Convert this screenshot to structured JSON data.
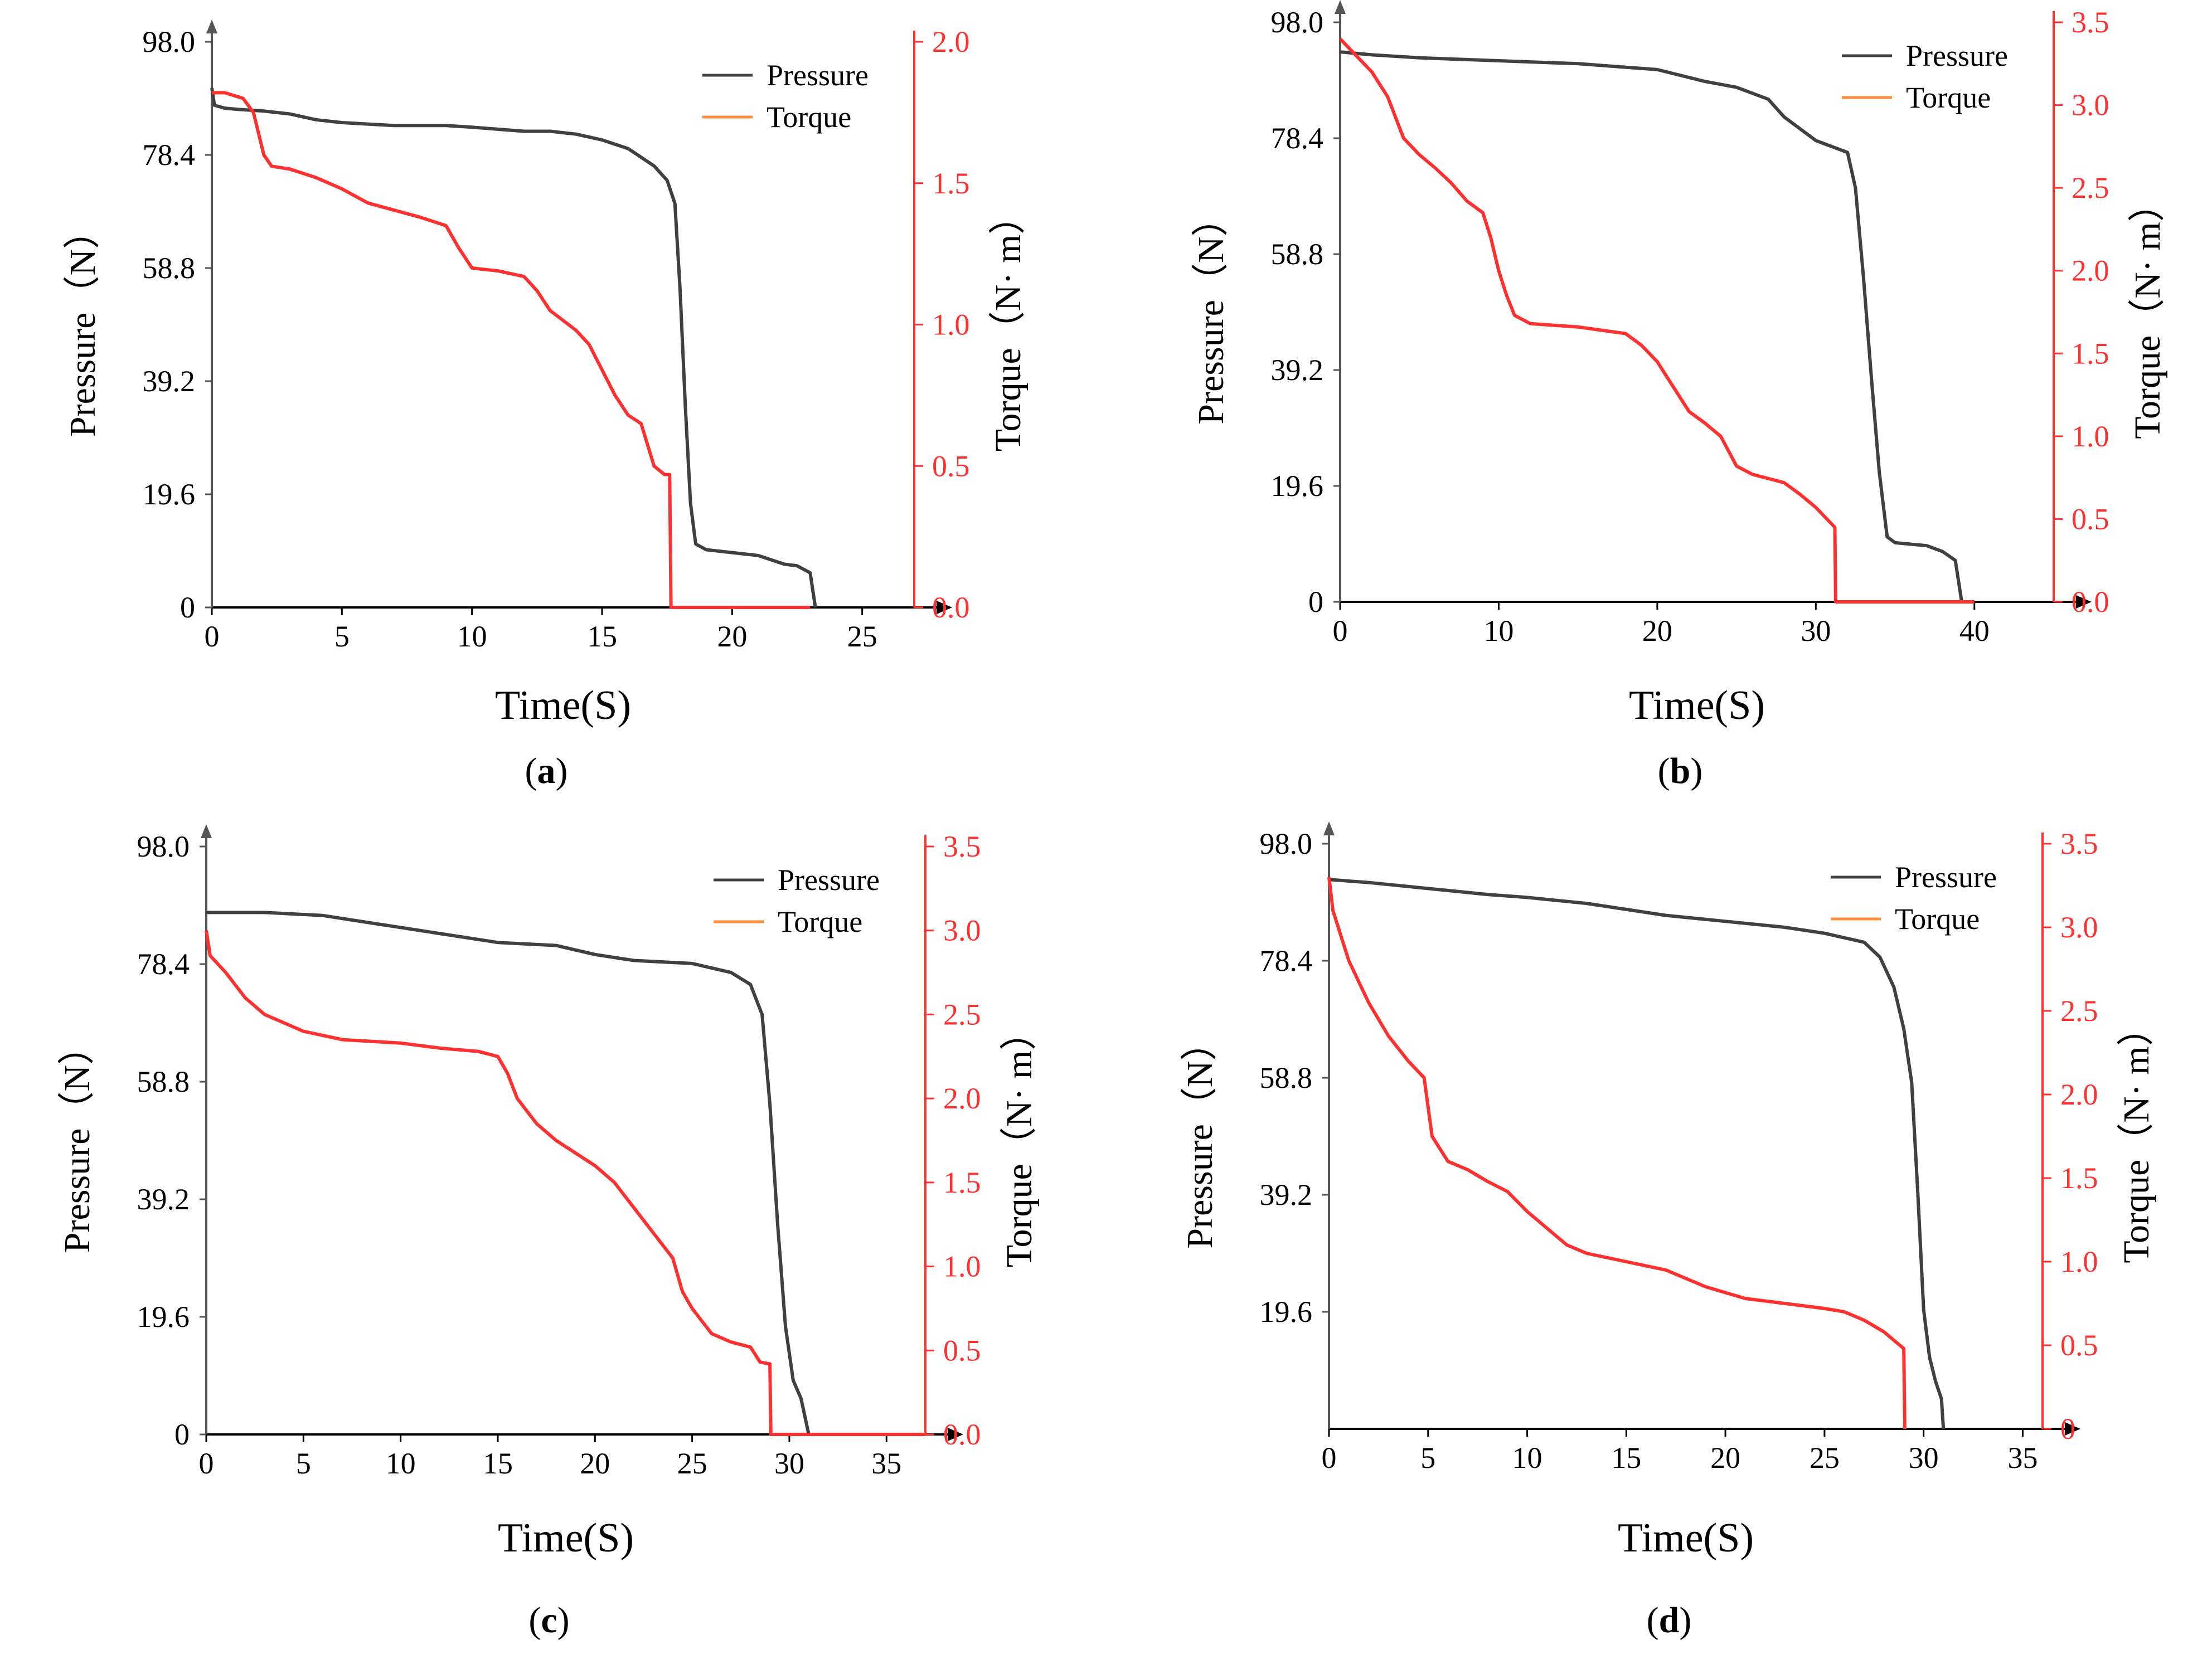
{
  "colors": {
    "pressure": "#404040",
    "torque": "#ff3030",
    "torque_axis": "#ff3030",
    "axis": "#000000"
  },
  "chart_data": [
    {
      "id": "a",
      "panel_label": "(a)",
      "type": "line",
      "xlabel": "Time(S)",
      "ylabel_left": "Pressure（N）",
      "ylabel_right": "Torque（N· m）",
      "xlim": [
        0,
        27
      ],
      "ylim_left": [
        0,
        98.0
      ],
      "ylim_right": [
        0,
        2.0
      ],
      "xticks": [
        0,
        5,
        10,
        15,
        20,
        25
      ],
      "xtick_labels": [
        "0",
        "5",
        "10",
        "15",
        "20",
        "25"
      ],
      "yticks_left": [
        0,
        19.6,
        39.2,
        58.8,
        78.4,
        98.0
      ],
      "ytick_labels_left": [
        "0",
        "19.6",
        "39.2",
        "58.8",
        "78.4",
        "98.0"
      ],
      "yticks_right": [
        0,
        0.5,
        1.0,
        1.5,
        2.0
      ],
      "ytick_labels_right": [
        "0.0",
        "0.5",
        "1.0",
        "1.5",
        "2.0"
      ],
      "legend_position": "top-right",
      "series": [
        {
          "name": "Pressure",
          "axis": "left",
          "x": [
            0,
            0.1,
            0.5,
            1,
            2,
            3,
            4,
            5,
            7,
            9,
            10,
            12,
            13,
            14,
            15,
            16,
            17,
            17.5,
            17.8,
            18.0,
            18.2,
            18.4,
            18.6,
            19,
            20,
            21,
            22,
            22.5,
            23.0,
            23.2
          ],
          "y": [
            90,
            87,
            86.5,
            86.3,
            86,
            85.5,
            84.5,
            84,
            83.5,
            83.5,
            83.2,
            82.5,
            82.5,
            82.0,
            81.0,
            79.5,
            76.5,
            74,
            70,
            55,
            35,
            18,
            11,
            10,
            9.5,
            9,
            7.5,
            7.2,
            6,
            0
          ]
        },
        {
          "name": "Torque",
          "axis": "right",
          "x": [
            0,
            0.5,
            1.2,
            1.6,
            2.0,
            2.3,
            3,
            4,
            5,
            6,
            8,
            9,
            9.5,
            10,
            11,
            12,
            12.5,
            13,
            14,
            14.5,
            15,
            15.5,
            16,
            16.5,
            17,
            17.4,
            17.6,
            17.65,
            23
          ],
          "y": [
            1.82,
            1.82,
            1.8,
            1.75,
            1.6,
            1.56,
            1.55,
            1.52,
            1.48,
            1.43,
            1.38,
            1.35,
            1.27,
            1.2,
            1.19,
            1.17,
            1.12,
            1.05,
            0.98,
            0.93,
            0.84,
            0.75,
            0.68,
            0.65,
            0.5,
            0.47,
            0.47,
            0.0,
            0.0
          ]
        }
      ]
    },
    {
      "id": "b",
      "panel_label": "(b)",
      "type": "line",
      "xlabel": "Time(S)",
      "ylabel_left": "Pressure（N）",
      "ylabel_right": "Torque（N· m）",
      "xlim": [
        0,
        45
      ],
      "ylim_left": [
        0,
        98.0
      ],
      "ylim_right": [
        0,
        3.5
      ],
      "xticks": [
        0,
        10,
        20,
        30,
        40
      ],
      "xtick_labels": [
        "0",
        "10",
        "20",
        "30",
        "40"
      ],
      "yticks_left": [
        0,
        19.6,
        39.2,
        58.8,
        78.4,
        98.0
      ],
      "ytick_labels_left": [
        "0",
        "19.6",
        "39.2",
        "58.8",
        "78.4",
        "98.0"
      ],
      "yticks_right": [
        0,
        0.5,
        1.0,
        1.5,
        2.0,
        2.5,
        3.0,
        3.5
      ],
      "ytick_labels_right": [
        "0.0",
        "0.5",
        "1.0",
        "1.5",
        "2.0",
        "2.5",
        "3.0",
        "3.5"
      ],
      "legend_position": "top-right",
      "series": [
        {
          "name": "Pressure",
          "axis": "left",
          "x": [
            0,
            2,
            5,
            10,
            15,
            20,
            23,
            25,
            27,
            28,
            29,
            30,
            31,
            32,
            32.5,
            33,
            33.5,
            34,
            34.5,
            35,
            37,
            38,
            38.8,
            39.2
          ],
          "y": [
            93,
            92.5,
            92,
            91.5,
            91,
            90,
            88,
            87,
            85,
            82,
            80,
            78,
            77,
            76,
            70,
            55,
            38,
            22,
            11,
            10,
            9.5,
            8.5,
            7,
            0
          ]
        },
        {
          "name": "Torque",
          "axis": "right",
          "x": [
            0,
            1,
            2,
            3,
            4,
            5,
            6,
            7,
            8,
            9,
            9.5,
            10,
            10.5,
            11,
            12,
            15,
            18,
            19,
            20,
            21,
            22,
            23,
            24,
            25,
            26,
            28,
            29,
            30,
            31,
            31.2,
            31.25,
            40
          ],
          "y": [
            3.4,
            3.3,
            3.2,
            3.05,
            2.8,
            2.7,
            2.62,
            2.53,
            2.42,
            2.35,
            2.2,
            2.0,
            1.85,
            1.73,
            1.68,
            1.66,
            1.62,
            1.55,
            1.45,
            1.3,
            1.15,
            1.08,
            1.0,
            0.82,
            0.77,
            0.72,
            0.65,
            0.57,
            0.47,
            0.45,
            0.0,
            0.0
          ]
        }
      ]
    },
    {
      "id": "c",
      "panel_label": "(c)",
      "type": "line",
      "xlabel": "Time(S)",
      "ylabel_left": "Pressure（N）",
      "ylabel_right": "Torque（N· m）",
      "xlim": [
        0,
        37
      ],
      "ylim_left": [
        0,
        98.0
      ],
      "ylim_right": [
        0,
        3.5
      ],
      "xticks": [
        0,
        5,
        10,
        15,
        20,
        25,
        30,
        35
      ],
      "xtick_labels": [
        "0",
        "5",
        "10",
        "15",
        "20",
        "25",
        "30",
        "35"
      ],
      "yticks_left": [
        0,
        19.6,
        39.2,
        58.8,
        78.4,
        98.0
      ],
      "ytick_labels_left": [
        "0",
        "19.6",
        "39.2",
        "58.8",
        "78.4",
        "98.0"
      ],
      "yticks_right": [
        0,
        0.5,
        1.0,
        1.5,
        2.0,
        2.5,
        3.0,
        3.5
      ],
      "ytick_labels_right": [
        "0.0",
        "0.5",
        "1.0",
        "1.5",
        "2.0",
        "2.5",
        "3.0",
        "3.5"
      ],
      "legend_position": "top-right",
      "series": [
        {
          "name": "Pressure",
          "axis": "left",
          "x": [
            0,
            3,
            6,
            8,
            10,
            12,
            15,
            18,
            20,
            22,
            25,
            27,
            28.0,
            28.6,
            29.0,
            29.4,
            29.8,
            30.2,
            30.6,
            31.0
          ],
          "y": [
            87,
            87,
            86.5,
            85.5,
            84.5,
            83.5,
            82,
            81.5,
            80,
            79,
            78.5,
            77,
            75,
            70,
            55,
            35,
            18,
            9,
            6,
            0
          ]
        },
        {
          "name": "Torque",
          "axis": "right",
          "x": [
            0,
            0.2,
            1,
            2,
            3,
            4,
            5,
            7,
            10,
            12,
            14,
            15,
            15.5,
            16,
            17,
            18,
            20,
            21,
            22,
            23,
            24,
            24.5,
            25,
            26,
            27,
            28,
            28.5,
            29.0,
            29.05,
            37
          ],
          "y": [
            3.0,
            2.85,
            2.75,
            2.6,
            2.5,
            2.45,
            2.4,
            2.35,
            2.33,
            2.3,
            2.28,
            2.25,
            2.15,
            2.0,
            1.85,
            1.75,
            1.6,
            1.5,
            1.35,
            1.2,
            1.05,
            0.85,
            0.75,
            0.6,
            0.55,
            0.52,
            0.43,
            0.42,
            0.0,
            0.0
          ]
        }
      ]
    },
    {
      "id": "d",
      "panel_label": "(d)",
      "type": "line",
      "xlabel": "Time(S)",
      "ylabel_left": "Pressure（N）",
      "ylabel_right": "Torque（N· m）",
      "xlim": [
        0,
        36
      ],
      "ylim_left": [
        0,
        98.0
      ],
      "ylim_right": [
        0,
        3.5
      ],
      "xticks": [
        0,
        5,
        10,
        15,
        20,
        25,
        30,
        35
      ],
      "xtick_labels": [
        "0",
        "5",
        "10",
        "15",
        "20",
        "25",
        "30",
        "35"
      ],
      "yticks_left": [
        19.6,
        39.2,
        58.8,
        78.4,
        98.0
      ],
      "ytick_labels_left": [
        "19.6",
        "39.2",
        "58.8",
        "78.4",
        "98.0"
      ],
      "yticks_right": [
        0,
        0.5,
        1.0,
        1.5,
        2.0,
        2.5,
        3.0,
        3.5
      ],
      "ytick_labels_right": [
        "0",
        "0.5",
        "1.0",
        "1.5",
        "2.0",
        "2.5",
        "3.0",
        "3.5"
      ],
      "legend_position": "top-right",
      "series": [
        {
          "name": "Pressure",
          "axis": "left",
          "x": [
            0,
            2,
            5,
            8,
            10,
            13,
            15,
            17,
            20,
            23,
            25,
            27,
            27.8,
            28.5,
            29.0,
            29.4,
            29.7,
            30.0,
            30.3,
            30.6,
            30.9,
            31.0
          ],
          "y": [
            92,
            91.5,
            90.5,
            89.5,
            89,
            88,
            87,
            86,
            85,
            84,
            83,
            81.5,
            79,
            74,
            67,
            58,
            40,
            20,
            12,
            8,
            5,
            0
          ]
        },
        {
          "name": "Torque",
          "axis": "right",
          "x": [
            0,
            0.2,
            1,
            2,
            3,
            4,
            4.8,
            5.2,
            6,
            7,
            8,
            9,
            10,
            11,
            12,
            13,
            15,
            17,
            19,
            21,
            23,
            25,
            26,
            27,
            28,
            28.8,
            29.0,
            29.05
          ],
          "y": [
            3.3,
            3.1,
            2.8,
            2.55,
            2.35,
            2.2,
            2.1,
            1.75,
            1.6,
            1.55,
            1.48,
            1.42,
            1.3,
            1.2,
            1.1,
            1.05,
            1.0,
            0.95,
            0.85,
            0.78,
            0.75,
            0.72,
            0.7,
            0.65,
            0.58,
            0.5,
            0.48,
            0.0
          ]
        }
      ]
    }
  ]
}
